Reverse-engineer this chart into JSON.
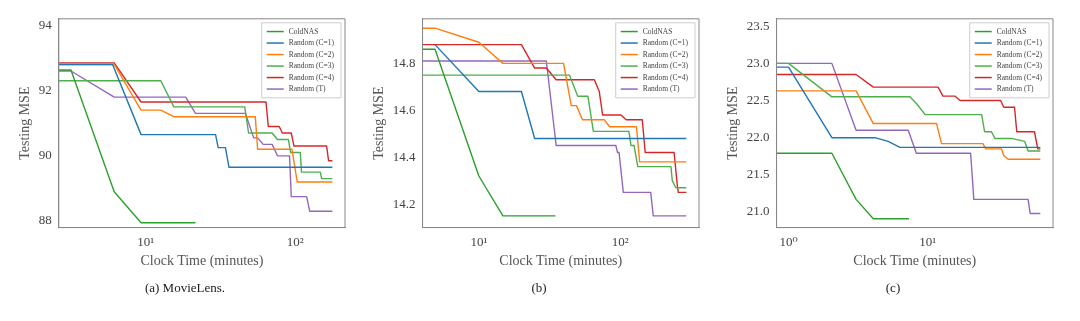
{
  "chart_data": [
    {
      "type": "line",
      "title": "(a) MovieLens.",
      "xlabel": "Clock Time (minutes)",
      "ylabel": "Testing MSE",
      "log": "x",
      "legend": "top right",
      "xlim": [
        2.62,
        215
      ],
      "ylim": [
        87.8,
        94.2
      ],
      "xticks": [
        {
          "value": 10,
          "label": "10¹"
        },
        {
          "value": 100,
          "label": "10²"
        }
      ],
      "yticks": [
        88,
        90,
        92,
        94
      ],
      "series": [
        {
          "name": "ColdNAS",
          "color": "#2ca02c",
          "x": [
            2.62,
            3.16,
            6.15,
            9.3,
            21.5
          ],
          "values": [
            92.63,
            92.63,
            88.9,
            87.95,
            87.95
          ]
        },
        {
          "name": "Random (C=1)",
          "color": "#1f77b4",
          "x": [
            2.62,
            6.0,
            9.3,
            29.3,
            30.5,
            34.1,
            36,
            177
          ],
          "values": [
            92.8,
            92.8,
            90.65,
            90.65,
            90.25,
            90.25,
            89.65,
            89.65
          ]
        },
        {
          "name": "Random (C=2)",
          "color": "#ff7f0e",
          "x": [
            2.62,
            6.15,
            9.3,
            12.6,
            15.4,
            54,
            56,
            95,
            103,
            177
          ],
          "values": [
            92.8,
            92.8,
            91.4,
            91.4,
            91.2,
            91.2,
            90.2,
            90.2,
            89.2,
            89.2
          ]
        },
        {
          "name": "Random (C=3)",
          "color": "#4cb04c",
          "x": [
            2.62,
            12.6,
            15.4,
            45.9,
            48.7,
            70,
            76,
            90,
            93,
            108,
            110,
            147,
            150,
            177
          ],
          "values": [
            92.3,
            92.3,
            91.5,
            91.5,
            90.7,
            90.7,
            90.5,
            90.5,
            90.1,
            90.1,
            89.5,
            89.5,
            89.3,
            89.3
          ]
        },
        {
          "name": "Random (C=4)",
          "color": "#d62728",
          "x": [
            2.62,
            6.15,
            9.3,
            63.7,
            66,
            78,
            82,
            94,
            98,
            162,
            167,
            177
          ],
          "values": [
            92.85,
            92.85,
            91.65,
            91.65,
            90.9,
            90.9,
            90.7,
            90.7,
            90.3,
            90.3,
            89.85,
            89.85
          ]
        },
        {
          "name": "Random (T)",
          "color": "#9467bd",
          "x": [
            2.62,
            3.16,
            6.15,
            18.5,
            21.5,
            46.4,
            52.7,
            56,
            61,
            70,
            76,
            91.5,
            94,
            119,
            125,
            177
          ],
          "values": [
            92.6,
            92.6,
            91.8,
            91.8,
            91.3,
            91.3,
            90.55,
            90.55,
            90.35,
            90.35,
            90.0,
            90.0,
            88.75,
            88.75,
            88.3,
            88.3
          ]
        }
      ]
    },
    {
      "type": "line",
      "title": "(b)",
      "xlabel": "Clock Time (minutes)",
      "ylabel": "Testing MSE",
      "log": "x",
      "legend": "top right",
      "xlim": [
        4.0,
        360
      ],
      "ylim": [
        14.1,
        14.99
      ],
      "xticks": [
        {
          "value": 10,
          "label": "10¹"
        },
        {
          "value": 100,
          "label": "10²"
        }
      ],
      "yticks": [
        14.2,
        14.4,
        14.6,
        14.8
      ],
      "series": [
        {
          "name": "ColdNAS",
          "color": "#2ca02c",
          "x": [
            4.0,
            4.9,
            10,
            14.8,
            34.8
          ],
          "values": [
            14.86,
            14.86,
            14.32,
            14.15,
            14.15
          ]
        },
        {
          "name": "Random (C=1)",
          "color": "#1f77b4",
          "x": [
            4.9,
            10,
            20,
            24.8,
            293
          ],
          "values": [
            14.88,
            14.68,
            14.68,
            14.48,
            14.48
          ]
        },
        {
          "name": "Random (C=2)",
          "color": "#ff7f0e",
          "x": [
            4.0,
            4.9,
            10,
            14.8,
            39.7,
            45,
            49,
            54,
            77,
            84,
            130,
            137,
            293
          ],
          "values": [
            14.95,
            14.95,
            14.89,
            14.8,
            14.8,
            14.62,
            14.62,
            14.56,
            14.56,
            14.53,
            14.53,
            14.38,
            14.38
          ]
        },
        {
          "name": "Random (C=3)",
          "color": "#4cb04c",
          "x": [
            4.0,
            43.7,
            50,
            59,
            64.5,
            115,
            119,
            125,
            133,
            228,
            233,
            247,
            293
          ],
          "values": [
            14.75,
            14.75,
            14.66,
            14.66,
            14.51,
            14.51,
            14.45,
            14.45,
            14.36,
            14.36,
            14.3,
            14.27,
            14.27
          ]
        },
        {
          "name": "Random (C=4)",
          "color": "#d62728",
          "x": [
            4.0,
            20,
            24.8,
            30,
            35.2,
            65.6,
            71,
            75,
            101,
            110,
            143,
            150,
            240,
            253,
            257,
            293
          ],
          "values": [
            14.88,
            14.88,
            14.78,
            14.78,
            14.73,
            14.73,
            14.68,
            14.58,
            14.58,
            14.56,
            14.56,
            14.42,
            14.42,
            14.28,
            14.25,
            14.25
          ]
        },
        {
          "name": "Random (T)",
          "color": "#9467bd",
          "x": [
            4.0,
            30,
            35.2,
            93,
            95.6,
            98,
            105,
            164,
            171,
            293
          ],
          "values": [
            14.81,
            14.81,
            14.45,
            14.45,
            14.42,
            14.42,
            14.25,
            14.25,
            14.15,
            14.15
          ]
        }
      ]
    },
    {
      "type": "line",
      "title": "(c)",
      "xlabel": "Clock Time (minutes)",
      "ylabel": "Testing MSE",
      "log": "x",
      "legend": "top right",
      "xlim": [
        0.82,
        79.8
      ],
      "ylim": [
        20.79,
        23.6
      ],
      "xticks": [
        {
          "value": 1,
          "label": "10⁰"
        },
        {
          "value": 10,
          "label": "10¹"
        }
      ],
      "yticks": [
        {
          "value": 21,
          "label": "21.0"
        },
        {
          "value": 21.5,
          "label": "21.5"
        },
        {
          "value": 22,
          "label": "22.0"
        },
        {
          "value": 22.5,
          "label": "22.5"
        },
        {
          "value": 23,
          "label": "23.0"
        },
        {
          "value": 23.5,
          "label": "23.5"
        }
      ],
      "series": [
        {
          "name": "ColdNAS",
          "color": "#2ca02c",
          "x": [
            0.82,
            2.05,
            3.06,
            4.07,
            7.35
          ],
          "values": [
            21.79,
            21.79,
            21.17,
            20.91,
            20.91
          ]
        },
        {
          "name": "Random (C=1)",
          "color": "#1f77b4",
          "x": [
            0.82,
            1.0,
            2.05,
            4.18,
            5.2,
            6.33,
            64.7
          ],
          "values": [
            22.95,
            22.95,
            22.0,
            22.0,
            21.95,
            21.87,
            21.87
          ]
        },
        {
          "name": "Random (C=2)",
          "color": "#ff7f0e",
          "x": [
            0.82,
            3.06,
            4.07,
            11.6,
            12.6,
            25.0,
            26.2,
            34.0,
            35.3,
            38.0,
            64.7
          ],
          "values": [
            22.63,
            22.63,
            22.19,
            22.19,
            21.92,
            21.92,
            21.85,
            21.85,
            21.76,
            21.71,
            21.71
          ]
        },
        {
          "name": "Random (C=3)",
          "color": "#4cb04c",
          "x": [
            0.82,
            1.0,
            2.05,
            7.46,
            8.4,
            9.6,
            24.5,
            25.7,
            28.8,
            30.5,
            40.1,
            44.8,
            50.0,
            52.8,
            64.7
          ],
          "values": [
            23.0,
            23.0,
            22.55,
            22.55,
            22.45,
            22.31,
            22.31,
            22.08,
            22.08,
            21.99,
            21.99,
            21.97,
            21.95,
            21.82,
            21.82
          ]
        },
        {
          "name": "Random (C=4)",
          "color": "#d62728",
          "x": [
            0.82,
            3.06,
            4.07,
            11.9,
            12.9,
            15.7,
            17.1,
            33.5,
            35.3,
            42.2,
            43.8,
            58.7,
            62,
            64.7
          ],
          "values": [
            22.85,
            22.85,
            22.68,
            22.68,
            22.56,
            22.56,
            22.5,
            22.5,
            22.41,
            22.41,
            22.08,
            22.08,
            21.85,
            21.85
          ]
        },
        {
          "name": "Random (T)",
          "color": "#9467bd",
          "x": [
            0.82,
            2.05,
            3.06,
            7.26,
            8.3,
            20.4,
            21.5,
            52.8,
            54.7,
            64.7
          ],
          "values": [
            23.0,
            23.0,
            22.1,
            22.1,
            21.79,
            21.79,
            21.17,
            21.17,
            20.98,
            20.98
          ]
        }
      ]
    }
  ]
}
